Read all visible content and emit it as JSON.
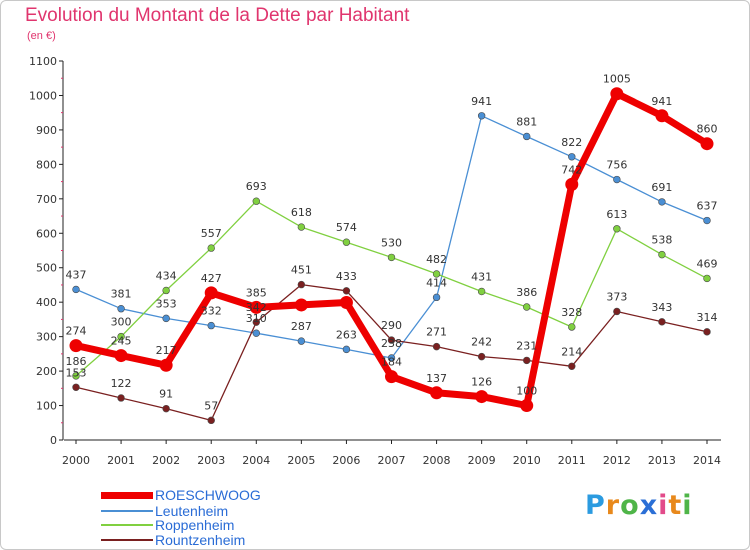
{
  "header": {
    "title": "Evolution du Montant de la Dette par Habitant",
    "subtitle": "(en €)"
  },
  "logo": {
    "letters": [
      "P",
      "r",
      "o",
      "x",
      "i",
      "t",
      "i"
    ],
    "colors": [
      "#2b9be0",
      "#e8891c",
      "#4fb548",
      "#2b6fd6",
      "#e24b8a",
      "#e8891c",
      "#4fb548"
    ]
  },
  "chart_data": {
    "type": "line",
    "title": "Evolution du Montant de la Dette par Habitant",
    "ylabel": "(en €)",
    "x": [
      "2000",
      "2001",
      "2002",
      "2003",
      "2004",
      "2005",
      "2006",
      "2007",
      "2008",
      "2009",
      "2010",
      "2011",
      "2012",
      "2013",
      "2014"
    ],
    "yticks": [
      0,
      100,
      200,
      300,
      400,
      500,
      600,
      700,
      800,
      900,
      1000,
      1100
    ],
    "ylim": [
      0,
      1100
    ],
    "grid": false,
    "legend_position": "bottom-left",
    "series": [
      {
        "name": "ROESCHWOOG",
        "color": "#ee0000",
        "values": [
          274,
          245,
          217,
          427,
          385,
          392,
          399,
          184,
          137,
          126,
          100,
          742,
          1005,
          941,
          860
        ],
        "labels": [
          "274",
          "245",
          "217",
          "427",
          "385",
          "",
          "",
          "184",
          "137",
          "126",
          "100",
          "742",
          "1005",
          "941",
          "860"
        ]
      },
      {
        "name": "Leutenheim",
        "color": "#4a8fd4",
        "values": [
          437,
          381,
          353,
          332,
          310,
          287,
          263,
          238,
          414,
          941,
          881,
          822,
          756,
          691,
          637
        ],
        "labels": [
          "437",
          "381",
          "353",
          "332",
          "310",
          "287",
          "263",
          "238",
          "414",
          "941",
          "881",
          "822",
          "756",
          "691",
          "637"
        ]
      },
      {
        "name": "Roppenheim",
        "color": "#80d040",
        "values": [
          186,
          300,
          434,
          557,
          693,
          618,
          574,
          530,
          482,
          431,
          386,
          328,
          613,
          538,
          469
        ],
        "labels": [
          "186",
          "300",
          "434",
          "557",
          "693",
          "618",
          "574",
          "530",
          "482",
          "431",
          "386",
          "328",
          "613",
          "538",
          "469"
        ]
      },
      {
        "name": "Rountzenheim",
        "color": "#7a2020",
        "values": [
          153,
          122,
          91,
          57,
          342,
          451,
          433,
          290,
          271,
          242,
          231,
          214,
          373,
          343,
          314
        ],
        "labels": [
          "153",
          "122",
          "91",
          "57",
          "342",
          "451",
          "433",
          "290",
          "271",
          "242",
          "231",
          "214",
          "373",
          "343",
          "314"
        ]
      }
    ]
  }
}
